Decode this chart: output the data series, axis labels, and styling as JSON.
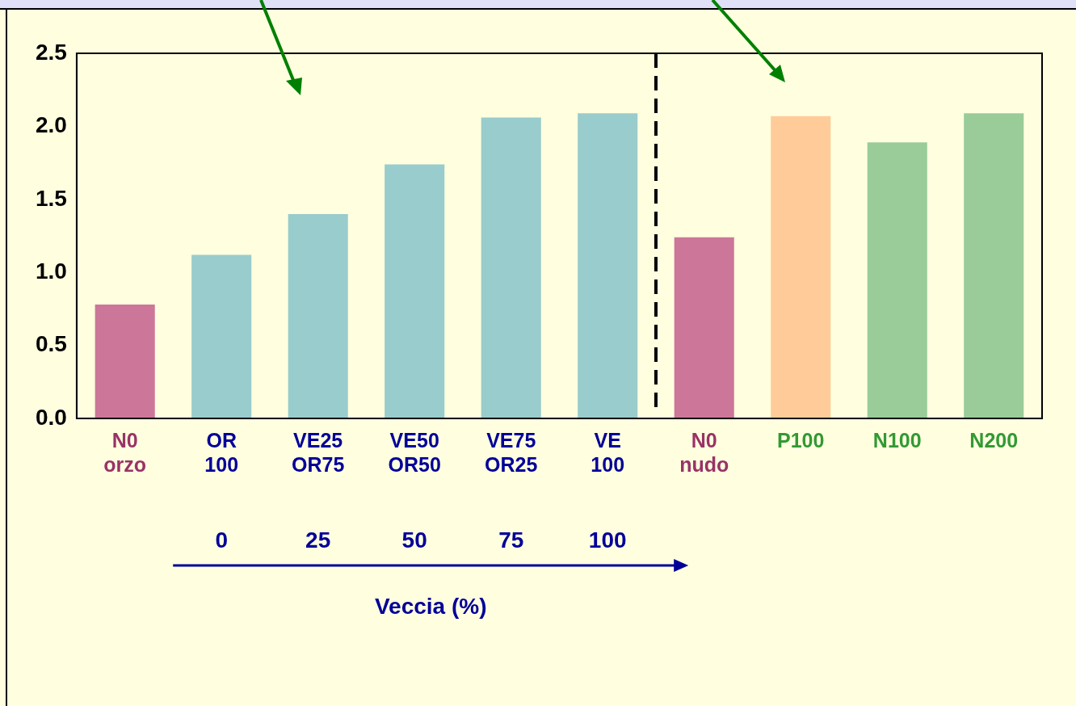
{
  "chart_data": {
    "type": "bar",
    "categories": [
      "N0\norzo",
      "OR\n100",
      "VE25\nOR75",
      "VE50\nOR50",
      "VE75\nOR25",
      "VE\n100",
      "N0\nnudo",
      "P100",
      "N100",
      "N200"
    ],
    "values": [
      0.78,
      1.12,
      1.4,
      1.74,
      2.06,
      2.09,
      1.24,
      2.07,
      1.89,
      2.09
    ],
    "colors": [
      "#cc7799",
      "#99cccc",
      "#99cccc",
      "#99cccc",
      "#99cccc",
      "#99cccc",
      "#cc7799",
      "#ffcc99",
      "#99cc99",
      "#99cc99"
    ],
    "ylim": [
      0,
      2.5
    ],
    "yticks": [
      {
        "value": 0,
        "label": "0.0"
      },
      0.5,
      {
        "value": 1,
        "label": "1.0"
      },
      1.5,
      {
        "value": 2,
        "label": "2.0"
      },
      2.5
    ],
    "annotations": [
      "0",
      "25",
      "50",
      "75",
      "100",
      "Veccia (%)"
    ],
    "grid": false,
    "legend": false
  }
}
